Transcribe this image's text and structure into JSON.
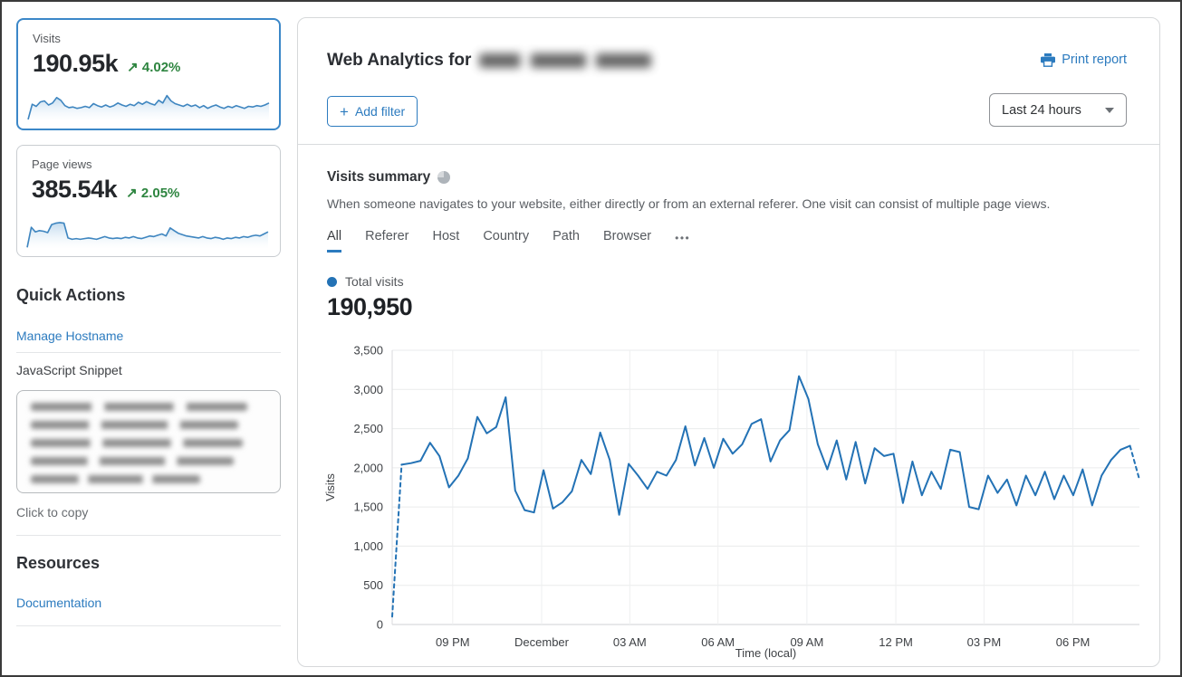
{
  "sidebar": {
    "visits_card": {
      "label": "Visits",
      "value": "190.95k",
      "delta_arrow": "↗",
      "delta": "4.02%",
      "sparkline": [
        3,
        48,
        42,
        55,
        58,
        46,
        52,
        68,
        60,
        44,
        38,
        40,
        36,
        38,
        42,
        38,
        50,
        44,
        40,
        46,
        40,
        44,
        52,
        46,
        42,
        48,
        44,
        54,
        48,
        56,
        50,
        46,
        60,
        52,
        74,
        58,
        50,
        46,
        42,
        48,
        42,
        46,
        38,
        44,
        36,
        42,
        46,
        40,
        36,
        42,
        38,
        44,
        40,
        36,
        42,
        40,
        44,
        42,
        46,
        52
      ]
    },
    "pageviews_card": {
      "label": "Page views",
      "value": "385.54k",
      "delta_arrow": "↗",
      "delta": "2.05%",
      "sparkline": [
        2,
        62,
        48,
        52,
        50,
        46,
        70,
        74,
        76,
        74,
        30,
        26,
        28,
        26,
        28,
        30,
        28,
        26,
        30,
        34,
        30,
        28,
        30,
        28,
        32,
        30,
        34,
        30,
        28,
        32,
        36,
        34,
        38,
        42,
        36,
        60,
        52,
        44,
        40,
        36,
        34,
        32,
        30,
        34,
        30,
        28,
        32,
        30,
        26,
        30,
        28,
        32,
        30,
        34,
        32,
        36,
        38,
        36,
        42,
        48
      ]
    },
    "quick_actions": {
      "title": "Quick Actions",
      "manage_hostname_label": "Manage Hostname",
      "snippet_label": "JavaScript Snippet",
      "copy_hint": "Click to copy"
    },
    "resources": {
      "title": "Resources",
      "documentation_label": "Documentation"
    }
  },
  "header": {
    "title": "Web Analytics for",
    "print_label": "Print report",
    "add_filter_plus": "+",
    "add_filter_label": "Add filter",
    "time_range": "Last 24 hours"
  },
  "summary": {
    "title": "Visits summary",
    "description": "When someone navigates to your website, either directly or from an external referer. One visit can consist of multiple page views.",
    "tabs": [
      "All",
      "Referer",
      "Host",
      "Country",
      "Path",
      "Browser"
    ],
    "active_tab": "All",
    "more_tabs_label": "•••",
    "legend_label": "Total visits",
    "total_value": "190,950"
  },
  "colors": {
    "link_blue": "#2c7bbf",
    "chart_blue": "#2372b5",
    "green": "#2e8540",
    "active_card_border": "#3b87c8"
  },
  "chart_data": {
    "type": "line",
    "title": "Total visits",
    "xlabel": "Time (local)",
    "ylabel": "Visits",
    "ylim": [
      0,
      3500
    ],
    "yticks": [
      0,
      500,
      1000,
      1500,
      2000,
      2500,
      3000,
      3500
    ],
    "xticks": [
      {
        "label": "09 PM",
        "pos": 0.081
      },
      {
        "label": "December",
        "pos": 0.2
      },
      {
        "label": "03 AM",
        "pos": 0.318
      },
      {
        "label": "06 AM",
        "pos": 0.436
      },
      {
        "label": "09 AM",
        "pos": 0.555
      },
      {
        "label": "12 PM",
        "pos": 0.674
      },
      {
        "label": "03 PM",
        "pos": 0.792
      },
      {
        "label": "06 PM",
        "pos": 0.911
      }
    ],
    "grid": true,
    "legend_position": "top-left",
    "series": [
      {
        "name": "Total visits",
        "dashed_first_segment": true,
        "dashed_last_segment": true,
        "values": [
          100,
          2040,
          2060,
          2090,
          2320,
          2150,
          1750,
          1900,
          2120,
          2650,
          2440,
          2520,
          2900,
          1710,
          1460,
          1430,
          1970,
          1480,
          1560,
          1700,
          2100,
          1920,
          2450,
          2100,
          1400,
          2050,
          1900,
          1730,
          1950,
          1900,
          2100,
          2530,
          2030,
          2380,
          2000,
          2370,
          2180,
          2300,
          2560,
          2620,
          2080,
          2350,
          2480,
          3170,
          2880,
          2300,
          1980,
          2350,
          1850,
          2330,
          1800,
          2250,
          2150,
          2180,
          1550,
          2080,
          1650,
          1950,
          1730,
          2230,
          2200,
          1500,
          1470,
          1900,
          1680,
          1850,
          1520,
          1900,
          1650,
          1950,
          1600,
          1900,
          1650,
          1980,
          1520,
          1900,
          2100,
          2230,
          2280,
          1850
        ]
      }
    ]
  }
}
